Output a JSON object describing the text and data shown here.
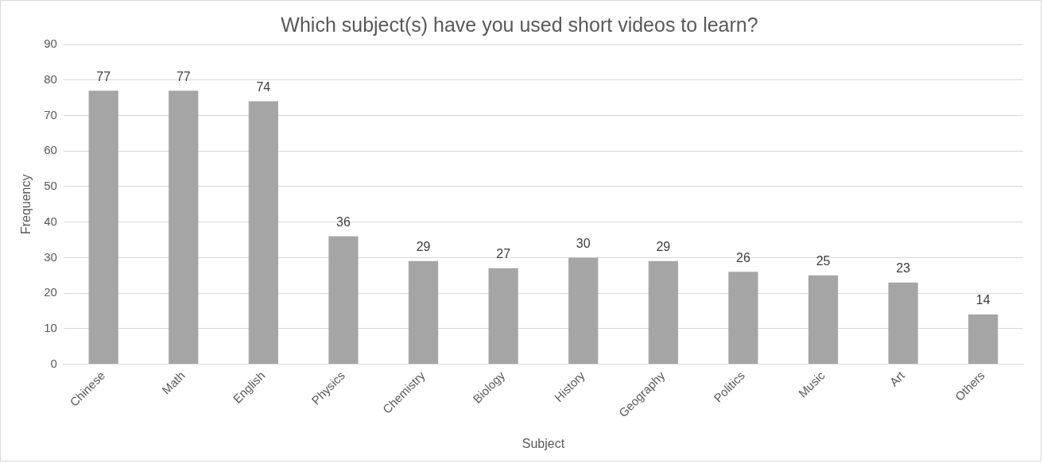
{
  "chart_data": {
    "type": "bar",
    "title": "Which subject(s) have you used short videos to learn?",
    "xlabel": "Subject",
    "ylabel": "Frequency",
    "categories": [
      "Chinese",
      "Math",
      "English",
      "Physics",
      "Chemistry",
      "Biology",
      "History",
      "Geography",
      "Politics",
      "Music",
      "Art",
      "Others"
    ],
    "values": [
      77,
      77,
      74,
      36,
      29,
      27,
      30,
      29,
      26,
      25,
      23,
      14
    ],
    "color": "#a5a5a5",
    "ylim": [
      0,
      90
    ],
    "yticks": [
      0,
      10,
      20,
      30,
      40,
      50,
      60,
      70,
      80,
      90
    ],
    "grid": "y",
    "data_labels": true,
    "legend": false
  }
}
